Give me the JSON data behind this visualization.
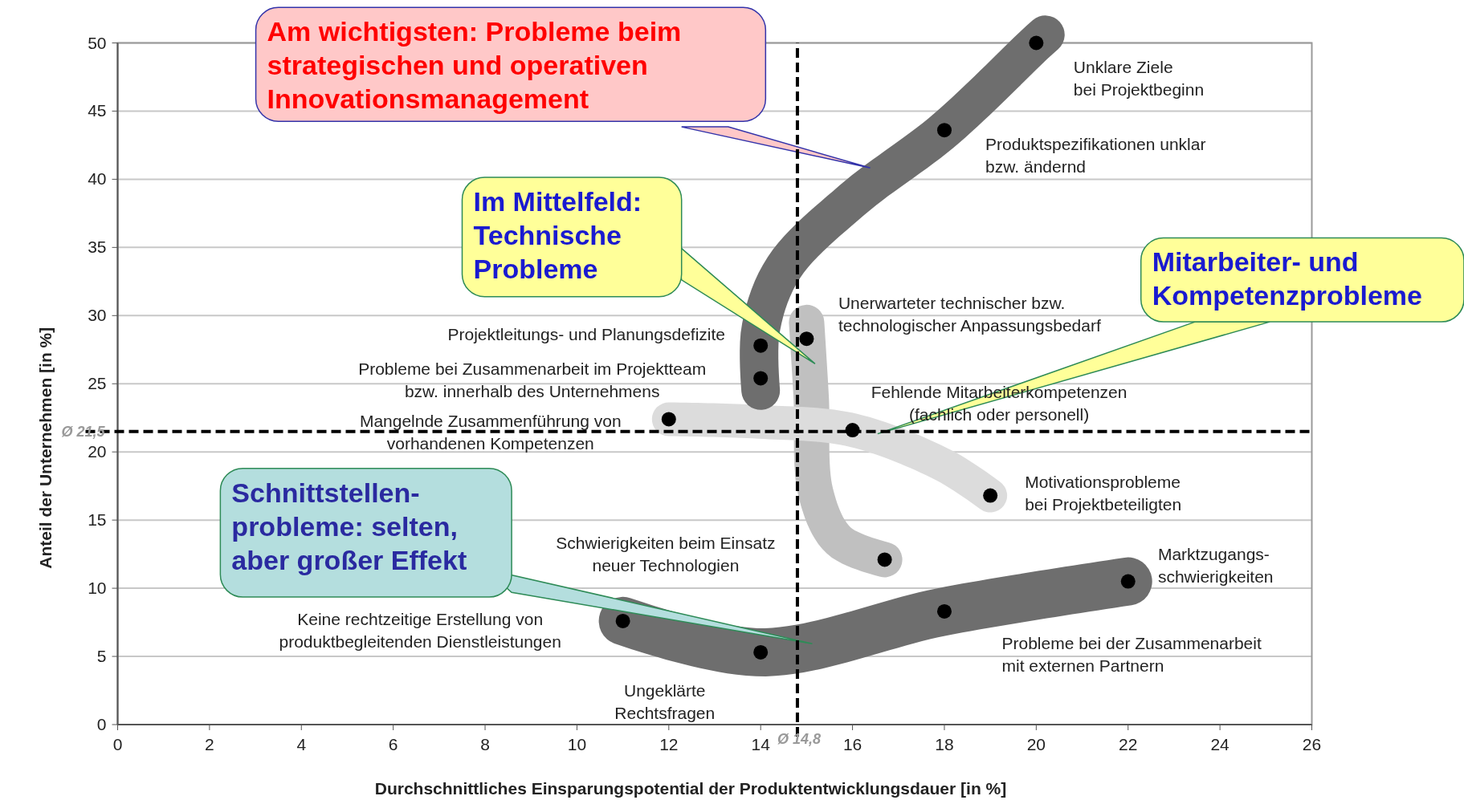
{
  "chart_data": {
    "type": "scatter",
    "xlabel": "Durchschnittliches Einsparungspotential der Produktentwicklungsdauer [in %]",
    "ylabel": "Anteil der Unternehmen [in %]",
    "xlim": [
      0,
      26
    ],
    "xticks": [
      0,
      2,
      4,
      6,
      8,
      10,
      12,
      14,
      16,
      18,
      20,
      22,
      24,
      26
    ],
    "ylim": [
      0,
      50
    ],
    "yticks": [
      0,
      5,
      10,
      15,
      20,
      25,
      30,
      35,
      40,
      45,
      50
    ],
    "grid": "y",
    "marker": "circle",
    "series": [
      {
        "color": "#000000",
        "x": [
          20,
          18,
          15,
          14,
          14,
          12,
          16,
          19,
          16.7,
          22,
          18,
          11,
          14
        ],
        "values": [
          50,
          43.6,
          28.3,
          27.8,
          25.4,
          22.4,
          21.6,
          16.8,
          12.1,
          10.5,
          8.3,
          7.6,
          5.3
        ]
      }
    ],
    "ref_lines": [
      {
        "axis": "x",
        "value": 14.8,
        "label": "Ø 14,8",
        "line_style": "dashed",
        "color": "#000000"
      },
      {
        "axis": "y",
        "value": 21.5,
        "label": "Ø 21,5",
        "line_style": "dashed",
        "color": "#000000"
      }
    ],
    "annotations": [
      {
        "text": "Unklare Ziele\nbei Projektbeginn",
        "x": 20,
        "y": 50
      },
      {
        "text": "Produktspezifikationen unklar\nbzw. ändernd",
        "x": 18,
        "y": 43.6
      },
      {
        "text": "Unerwarteter technischer bzw.\ntechnologischer Anpassungsbedarf",
        "x": 15,
        "y": 28.3
      },
      {
        "text": "Projektleitungs- und Planungsdefizite",
        "x": 14,
        "y": 27.8
      },
      "Probleme bei Zusammenarbeit im Projektteam\nbzw. innerhalb des Unternehmens",
      {
        "text": "Mangelnde Zusammenführung von\nvorhandenen Kompetenzen",
        "x": 12,
        "y": 22.4
      },
      {
        "text": "Fehlende Mitarbeiterkompetenzen\n(fachlich oder personell)",
        "x": 16,
        "y": 21.6
      },
      {
        "text": "Motivationsprobleme\nbei Projektbeteiligten",
        "x": 19,
        "y": 16.8
      },
      "Schwierigkeiten beim Einsatz\nneuer Technologien",
      {
        "text": "Marktzugangs-\nschwierigkeiten",
        "x": 22,
        "y": 10.5
      },
      "Probleme bei der Zusammenarbeit\nmit externen Partnern",
      "Keine rechtzeitige Erstellung von\nproduktbegleitenden Dienstleistungen",
      "Ungeklärte\nRechtsfragen",
      "Am wichtigsten: Probleme beim\nstrategischen und operativen\nInnovationsmanagement",
      "Im Mittelfeld:\nTechnische\nProbleme",
      "Mitarbeiter- und\nKompetenzprobleme",
      "Schnittstellen-\nprobleme: selten,\naber großer Effekt"
    ]
  }
}
